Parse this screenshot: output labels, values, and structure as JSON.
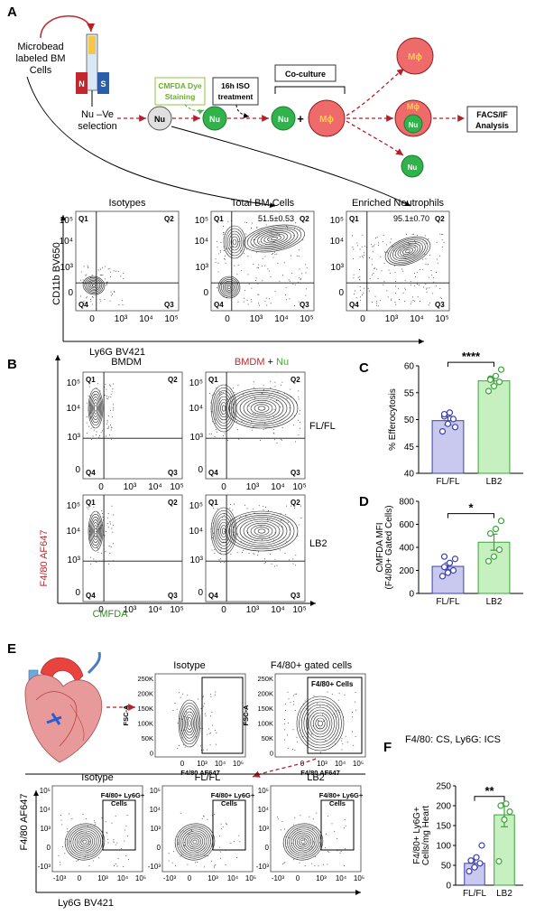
{
  "panel_letters": [
    "A",
    "B",
    "C",
    "D",
    "E",
    "F"
  ],
  "panelA": {
    "microbead_label": [
      "Microbead",
      "labeled BM",
      "Cells"
    ],
    "magnet": {
      "n": "N",
      "s": "S"
    },
    "selection_label": [
      "Nu –Ve",
      "selection"
    ],
    "cmfda_label": [
      "CMFDA Dye",
      "Staining"
    ],
    "iso_label": [
      "16h ISO",
      "treatment"
    ],
    "coculture_label": "Co-culture",
    "facs_label": [
      "FACS/IF",
      "Analysis"
    ],
    "cell_nu": "Nu",
    "cell_mphi": "Mϕ",
    "plus": "+",
    "plot_titles": [
      "Isotypes",
      "Total BM Cells",
      "Enriched Neutrophils"
    ],
    "quadrant_labels": {
      "q1": "Q1",
      "q2": "Q2",
      "q3": "Q3",
      "q4": "Q4"
    },
    "q2_values": [
      "",
      "51.5±0.53",
      "95.1±0.70"
    ],
    "y_axis_label": "CD11b BV650",
    "x_axis_label": "Ly6G BV421",
    "y_ticks": [
      "10⁵",
      "10⁴",
      "10³",
      "0"
    ],
    "x_ticks": [
      "0",
      "10³",
      "10⁴",
      "10⁵"
    ]
  },
  "panelB": {
    "col_titles": {
      "left": "BMDM",
      "right_a": "BMDM",
      "right_plus": " + ",
      "right_b": "Nu"
    },
    "row_labels": [
      "FL/FL",
      "LB2"
    ],
    "y_axis_label": "F4/80 AF647",
    "x_axis_label": "CMFDA",
    "y_ticks": [
      "10⁵",
      "10⁴",
      "10³",
      "0"
    ],
    "x_ticks": [
      "0",
      "10³",
      "10⁴",
      "10⁵"
    ],
    "colors": {
      "bmdm": "#c0282d",
      "nu": "#3fae2a",
      "ylabel": "#c0282d",
      "xlabel": "#3a8a2a"
    }
  },
  "chart_data": [
    {
      "panel": "C",
      "type": "bar",
      "categories": [
        "FL/FL",
        "LB2"
      ],
      "values": [
        49.8,
        57.2
      ],
      "errors": [
        0.8,
        0.8
      ],
      "points": [
        [
          47.8,
          49.2,
          50.1,
          50.6,
          51.3,
          48.6,
          51.0
        ],
        [
          55.3,
          56.2,
          57.0,
          57.6,
          58.1,
          59.3,
          57.4
        ]
      ],
      "ylabel": "% Efferocytosis",
      "ylim": [
        40,
        60
      ],
      "yticks": [
        "40",
        "45",
        "50",
        "55",
        "60"
      ],
      "significance": "****",
      "colors": [
        "#3b3fb6",
        "#3aa33a"
      ]
    },
    {
      "panel": "D",
      "type": "bar",
      "categories": [
        "FL/FL",
        "LB2"
      ],
      "values": [
        235,
        445
      ],
      "errors": [
        30,
        70
      ],
      "points": [
        [
          150,
          180,
          200,
          230,
          265,
          300,
          320
        ],
        [
          280,
          320,
          380,
          520,
          560,
          630
        ]
      ],
      "ylabel": [
        "CMFDA MFI",
        "(F4/80+ Gated Cells)"
      ],
      "ylim": [
        0,
        800
      ],
      "yticks": [
        "0",
        "200",
        "400",
        "600",
        "800"
      ],
      "significance": "*",
      "colors": [
        "#3b3fb6",
        "#3aa33a"
      ]
    },
    {
      "panel": "F",
      "type": "bar",
      "categories": [
        "FL/FL",
        "LB2"
      ],
      "values": [
        55,
        177
      ],
      "errors": [
        10,
        30
      ],
      "points": [
        [
          35,
          45,
          55,
          62,
          70,
          100
        ],
        [
          60,
          165,
          185,
          200,
          205
        ]
      ],
      "title": "F4/80: CS, Ly6G: ICS",
      "ylabel": [
        "F4/80+ Ly6G+",
        "Cells/mg Heart"
      ],
      "ylim": [
        0,
        250
      ],
      "yticks": [
        "0",
        "50",
        "100",
        "150",
        "200",
        "250"
      ],
      "significance": "**",
      "colors": [
        "#3b3fb6",
        "#3aa33a"
      ]
    }
  ],
  "panelE": {
    "top_titles": [
      "Isotype",
      "F4/80+ gated cells"
    ],
    "gate_label": "F4/80+ Cells",
    "top_y_label": "FSC-A",
    "top_x_label": "F4/80 AF647",
    "top_y_ticks": [
      "250K",
      "200K",
      "150K",
      "100K",
      "50K",
      "0"
    ],
    "top_x_ticks": [
      "0",
      "10³",
      "10⁴",
      "10⁵"
    ],
    "bottom_titles": [
      "Isotype",
      "FL/FL",
      "LB2"
    ],
    "bottom_gate_label": [
      "F4/80+ Ly6G+",
      "Cells"
    ],
    "bottom_y_label": "F4/80 AF647",
    "bottom_x_label": "Ly6G BV421",
    "bottom_x_ticks": [
      "-10³",
      "0",
      "10³",
      "10⁴",
      "10⁵"
    ],
    "bottom_y_ticks": [
      "10⁵",
      "10⁴",
      "10³",
      "0",
      "-10³"
    ]
  }
}
